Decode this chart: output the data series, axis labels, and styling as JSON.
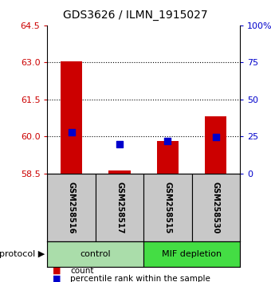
{
  "title": "GDS3626 / ILMN_1915027",
  "samples": [
    "GSM258516",
    "GSM258517",
    "GSM258515",
    "GSM258530"
  ],
  "red_bar_tops": [
    63.05,
    58.62,
    59.83,
    60.82
  ],
  "blue_percentiles": [
    28.0,
    20.0,
    22.0,
    24.5
  ],
  "ylim_left": [
    58.5,
    64.5
  ],
  "ylim_right": [
    0,
    100
  ],
  "yticks_left": [
    58.5,
    60.0,
    61.5,
    63.0,
    64.5
  ],
  "yticks_right": [
    0,
    25,
    50,
    75,
    100
  ],
  "baseline": 58.5,
  "red_color": "#cc0000",
  "blue_color": "#0000cc",
  "sample_bg": "#c8c8c8",
  "control_color": "#aaddaa",
  "mif_color": "#44dd44",
  "grid_lines": [
    60.0,
    61.5,
    63.0
  ],
  "control_samples": [
    0,
    1
  ],
  "mif_samples": [
    2,
    3
  ],
  "control_label": "control",
  "mif_label": "MIF depletion",
  "protocol_label": "protocol",
  "legend": [
    {
      "label": "count",
      "color": "#cc0000"
    },
    {
      "label": "percentile rank within the sample",
      "color": "#0000cc"
    }
  ]
}
